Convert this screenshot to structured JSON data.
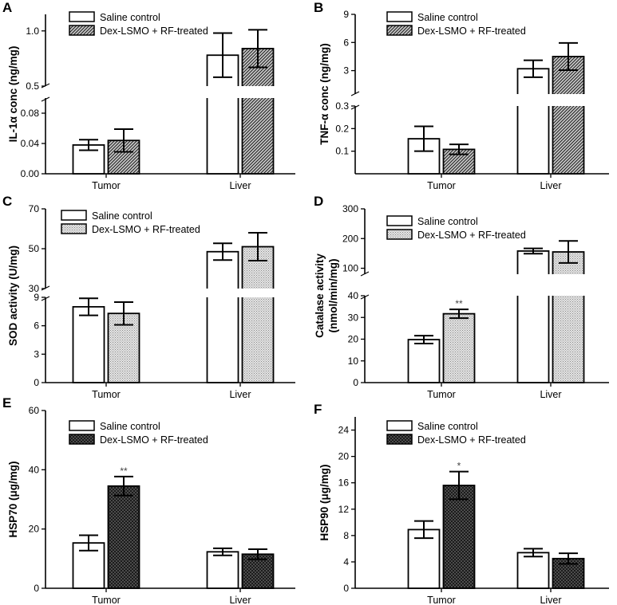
{
  "colors": {
    "ink": "#000000",
    "light_fill": "#d8d8d8",
    "dark_fill": "#3a3a3a",
    "white": "#ffffff"
  },
  "chart_data": [
    {
      "panel": "A",
      "type": "bar",
      "ylabel": "IL-1α conc (ng/mg)",
      "categories": [
        "Tumor",
        "Liver"
      ],
      "series": [
        {
          "name": "Saline control",
          "pattern": "none",
          "values": [
            0.038,
            0.78
          ],
          "errors": [
            0.007,
            0.2
          ]
        },
        {
          "name": "Dex-LSMO + RF-treated",
          "pattern": "diag",
          "values": [
            0.044,
            0.84
          ],
          "errors": [
            0.015,
            0.17
          ]
        }
      ],
      "significance": [
        "",
        "",
        "",
        ""
      ],
      "broken_axis": {
        "lower": [
          0,
          0.1
        ],
        "upper": [
          0.5,
          1.15
        ]
      },
      "lower_ticks": [
        0,
        0.04,
        0.08
      ],
      "lower_tick_labels": [
        "0.00",
        "0.04",
        "0.08"
      ],
      "upper_ticks": [
        0.5,
        1.0
      ],
      "upper_tick_labels": [
        "0.5",
        "1.0"
      ]
    },
    {
      "panel": "B",
      "type": "bar",
      "ylabel": "TNF-α conc (ng/mg)",
      "categories": [
        "Tumor",
        "Liver"
      ],
      "series": [
        {
          "name": "Saline control",
          "pattern": "none",
          "values": [
            0.155,
            3.2
          ],
          "errors": [
            0.055,
            0.9
          ]
        },
        {
          "name": "Dex-LSMO + RF-treated",
          "pattern": "diag",
          "values": [
            0.108,
            4.5
          ],
          "errors": [
            0.022,
            1.45
          ]
        }
      ],
      "significance": [
        "",
        "",
        "",
        ""
      ],
      "broken_axis": {
        "lower": [
          0,
          0.3
        ],
        "upper": [
          0.5,
          9
        ]
      },
      "lower_ticks": [
        0.1,
        0.2,
        0.3
      ],
      "lower_tick_labels": [
        "0.1",
        "0.2",
        "0.3"
      ],
      "upper_ticks": [
        3,
        6,
        9
      ],
      "upper_tick_labels": [
        "3",
        "6",
        "9"
      ]
    },
    {
      "panel": "C",
      "type": "bar",
      "ylabel": "SOD activity (U/mg)",
      "categories": [
        "Tumor",
        "Liver"
      ],
      "series": [
        {
          "name": "Saline control",
          "pattern": "none",
          "values": [
            8.0,
            48.5
          ],
          "errors": [
            0.9,
            4.2
          ]
        },
        {
          "name": "Dex-LSMO + RF-treated",
          "pattern": "dots",
          "values": [
            7.3,
            51.0
          ],
          "errors": [
            1.2,
            7.0
          ]
        }
      ],
      "significance": [
        "",
        "",
        "",
        ""
      ],
      "broken_axis": {
        "lower": [
          0,
          9
        ],
        "upper": [
          30,
          70
        ]
      },
      "lower_ticks": [
        0,
        3,
        6,
        9
      ],
      "lower_tick_labels": [
        "0",
        "3",
        "6",
        "9"
      ],
      "upper_ticks": [
        30,
        50,
        70
      ],
      "upper_tick_labels": [
        "30",
        "50",
        "70"
      ]
    },
    {
      "panel": "D",
      "type": "bar",
      "ylabel_lines": [
        "Catalase activity",
        "(nmol/min/mg)"
      ],
      "categories": [
        "Tumor",
        "Liver"
      ],
      "series": [
        {
          "name": "Saline control",
          "pattern": "none",
          "values": [
            19.8,
            158
          ],
          "errors": [
            1.8,
            9
          ]
        },
        {
          "name": "Dex-LSMO + RF-treated",
          "pattern": "dots",
          "values": [
            31.7,
            155
          ],
          "errors": [
            2.0,
            37
          ]
        }
      ],
      "significance": [
        "",
        "**",
        "",
        ""
      ],
      "broken_axis": {
        "lower": [
          0,
          40
        ],
        "upper": [
          80,
          300
        ]
      },
      "lower_ticks": [
        0,
        10,
        20,
        30,
        40
      ],
      "lower_tick_labels": [
        "0",
        "10",
        "20",
        "30",
        "40"
      ],
      "upper_ticks": [
        100,
        200,
        300
      ],
      "upper_tick_labels": [
        "100",
        "200",
        "300"
      ]
    },
    {
      "panel": "E",
      "type": "bar",
      "ylabel": "HSP70 (μg/mg)",
      "categories": [
        "Tumor",
        "Liver"
      ],
      "series": [
        {
          "name": "Saline control",
          "pattern": "none",
          "values": [
            15.3,
            12.3
          ],
          "errors": [
            2.6,
            1.2
          ]
        },
        {
          "name": "Dex-LSMO + RF-treated",
          "pattern": "cross",
          "values": [
            34.5,
            11.5
          ],
          "errors": [
            3.2,
            1.7
          ]
        }
      ],
      "significance": [
        "",
        "**",
        "",
        ""
      ],
      "ylim": [
        0,
        60
      ],
      "ticks": [
        0,
        20,
        40,
        60
      ],
      "tick_labels": [
        "0",
        "20",
        "40",
        "60"
      ]
    },
    {
      "panel": "F",
      "type": "bar",
      "ylabel": "HSP90 (μg/mg)",
      "categories": [
        "Tumor",
        "Liver"
      ],
      "series": [
        {
          "name": "Saline control",
          "pattern": "none",
          "values": [
            8.9,
            5.4
          ],
          "errors": [
            1.3,
            0.6
          ]
        },
        {
          "name": "Dex-LSMO + RF-treated",
          "pattern": "cross",
          "values": [
            15.6,
            4.5
          ],
          "errors": [
            2.1,
            0.8
          ]
        }
      ],
      "significance": [
        "",
        "*",
        "",
        ""
      ],
      "ylim": [
        0,
        26
      ],
      "ticks": [
        0,
        4,
        8,
        12,
        16,
        20,
        24
      ],
      "tick_labels": [
        "0",
        "4",
        "8",
        "12",
        "16",
        "20",
        "24"
      ]
    }
  ]
}
